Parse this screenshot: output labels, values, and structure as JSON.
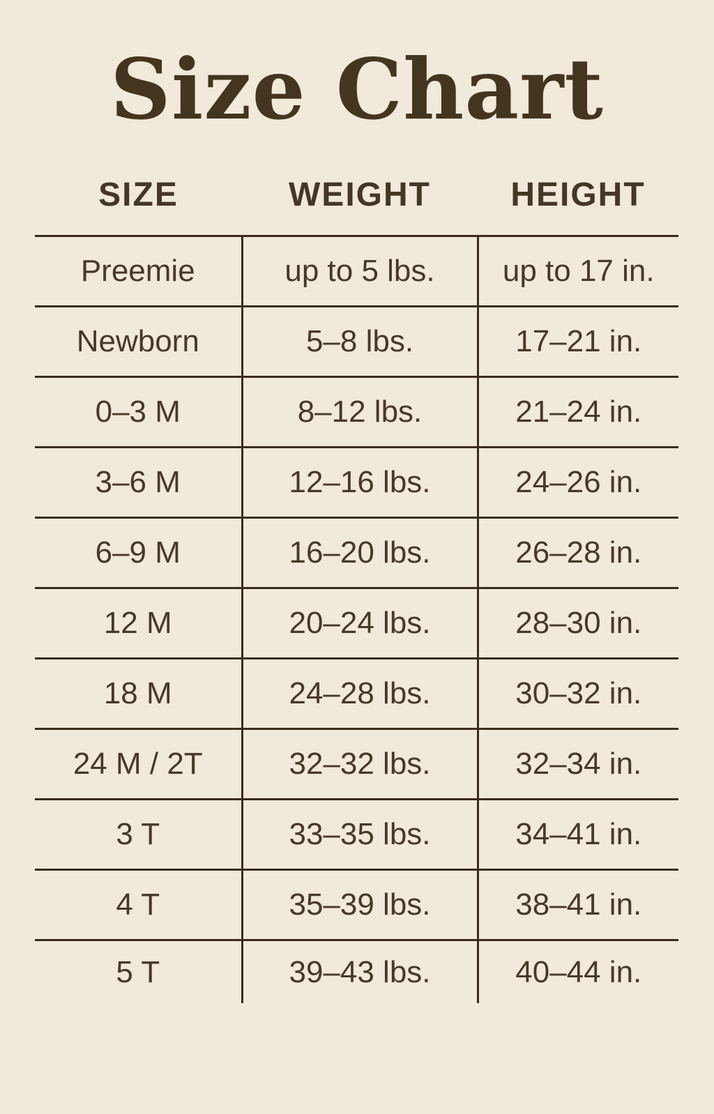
{
  "page": {
    "background_color": "#f1e9da",
    "text_color": "#473928",
    "line_color": "#392d1d",
    "title_color": "#43351f"
  },
  "chart_data": {
    "type": "table",
    "title": "Size Chart",
    "columns": [
      "SIZE",
      "WEIGHT",
      "HEIGHT"
    ],
    "rows": [
      [
        "Preemie",
        "up to 5 lbs.",
        "up to 17 in."
      ],
      [
        "Newborn",
        "5–8 lbs.",
        "17–21 in."
      ],
      [
        "0–3 M",
        "8–12 lbs.",
        "21–24 in."
      ],
      [
        "3–6 M",
        "12–16 lbs.",
        "24–26 in."
      ],
      [
        "6–9 M",
        "16–20 lbs.",
        "26–28 in."
      ],
      [
        "12 M",
        "20–24 lbs.",
        "28–30 in."
      ],
      [
        "18 M",
        "24–28 lbs.",
        "30–32 in."
      ],
      [
        "24 M / 2T",
        "32–32 lbs.",
        "32–34 in."
      ],
      [
        "3 T",
        "33–35 lbs.",
        "34–41 in."
      ],
      [
        "4 T",
        "35–39 lbs.",
        "38–41 in."
      ],
      [
        "5 T",
        "39–43 lbs.",
        "40–44 in."
      ]
    ]
  }
}
